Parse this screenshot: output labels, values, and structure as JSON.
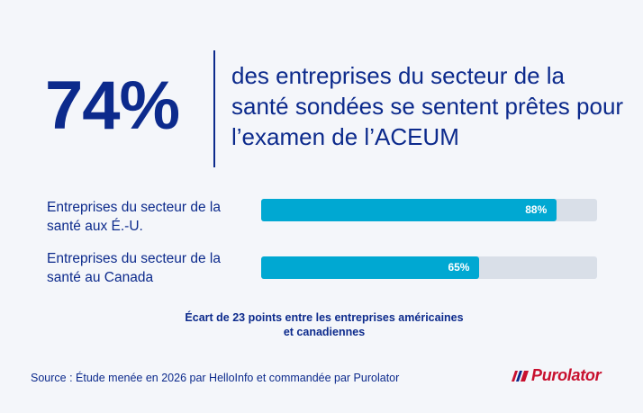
{
  "headline": {
    "stat": "74%",
    "text": "des entreprises du secteur de la santé sondées se sentent prêtes pour l’examen de l’ACEUM"
  },
  "chart_data": {
    "type": "bar",
    "orientation": "horizontal",
    "categories": [
      "Entreprises du secteur de la santé aux É.-U.",
      "Entreprises du secteur de la santé au Canada"
    ],
    "values": [
      88,
      65
    ],
    "value_labels": [
      "88%",
      "65%"
    ],
    "xlim": [
      0,
      100
    ],
    "bar_color": "#00a8d2",
    "track_color": "#d9dfe8",
    "grid": false
  },
  "note": "Écart de 23 points entre les entreprises américaines et canadiennes",
  "source": "Source : Étude menée en 2026 par HelloInfo et commandée par Purolator",
  "logo": {
    "text": "Purolator",
    "color": "#c8102e"
  },
  "colors": {
    "accent": "#0c2a8c",
    "background": "#f4f6fa"
  }
}
